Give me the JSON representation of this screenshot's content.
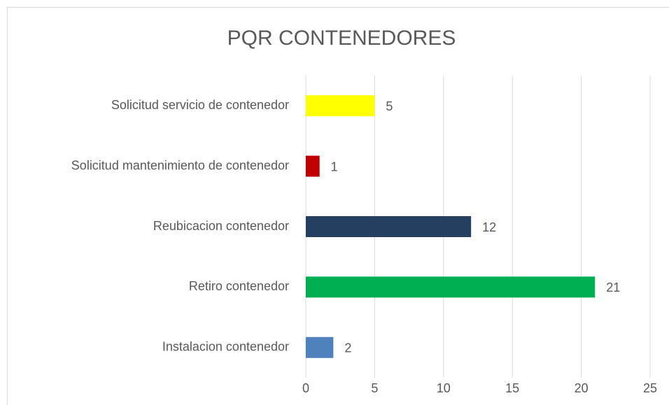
{
  "chart_data": {
    "type": "bar",
    "orientation": "horizontal",
    "title": "PQR CONTENEDORES",
    "categories": [
      "Solicitud servicio de contenedor",
      "Solicitud mantenimiento de contenedor",
      "Reubicacion contenedor",
      "Retiro contenedor",
      "Instalacion contenedor"
    ],
    "values": [
      5,
      1,
      12,
      21,
      2
    ],
    "colors": [
      "#ffff00",
      "#c00000",
      "#243f60",
      "#00b050",
      "#4f81bd"
    ],
    "xlim": [
      0,
      25
    ],
    "xticks": [
      0,
      5,
      10,
      15,
      20,
      25
    ],
    "grid": true
  }
}
